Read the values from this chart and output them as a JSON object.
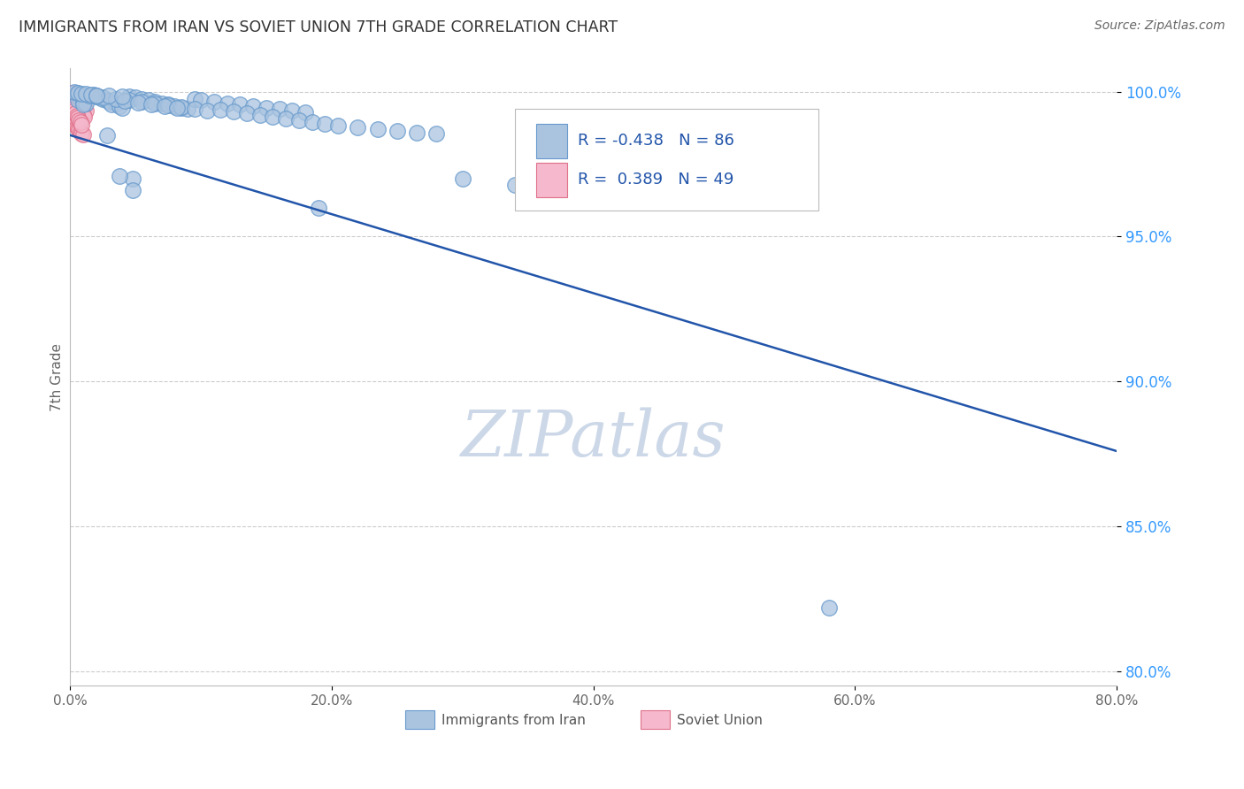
{
  "title": "IMMIGRANTS FROM IRAN VS SOVIET UNION 7TH GRADE CORRELATION CHART",
  "source": "Source: ZipAtlas.com",
  "ylabel": "7th Grade",
  "x_tick_labels": [
    "0.0%",
    "20.0%",
    "40.0%",
    "60.0%",
    "80.0%"
  ],
  "y_tick_labels": [
    "80.0%",
    "85.0%",
    "90.0%",
    "95.0%",
    "100.0%"
  ],
  "xlim": [
    0.0,
    0.8
  ],
  "ylim": [
    0.795,
    1.008
  ],
  "iran_color": "#aac4e0",
  "iran_edge": "#6699cc",
  "soviet_color": "#f5b8cc",
  "soviet_edge": "#e0708a",
  "trendline_color": "#2255aa",
  "grid_color": "#cccccc",
  "title_color": "#333333",
  "axis_color": "#666666",
  "source_color": "#666666",
  "watermark_color": "#ccd8e8",
  "legend_text_color": "#2255aa",
  "iran_x": [
    0.005,
    0.008,
    0.01,
    0.012,
    0.008,
    0.006,
    0.01,
    0.015,
    0.012,
    0.01,
    0.018,
    0.02,
    0.022,
    0.025,
    0.028,
    0.03,
    0.035,
    0.032,
    0.038,
    0.04,
    0.045,
    0.05,
    0.055,
    0.06,
    0.065,
    0.07,
    0.075,
    0.08,
    0.085,
    0.09,
    0.095,
    0.1,
    0.11,
    0.12,
    0.13,
    0.14,
    0.15,
    0.16,
    0.17,
    0.18,
    0.015,
    0.025,
    0.035,
    0.045,
    0.055,
    0.065,
    0.075,
    0.085,
    0.095,
    0.105,
    0.042,
    0.052,
    0.062,
    0.072,
    0.082,
    0.115,
    0.125,
    0.135,
    0.145,
    0.155,
    0.165,
    0.175,
    0.185,
    0.195,
    0.205,
    0.22,
    0.235,
    0.25,
    0.265,
    0.28,
    0.003,
    0.006,
    0.009,
    0.012,
    0.016,
    0.02,
    0.03,
    0.04,
    0.58,
    0.19,
    0.048,
    0.038,
    0.028,
    0.048,
    0.02,
    0.3,
    0.34,
    0.38,
    0.42,
    0.46
  ],
  "iran_y": [
    0.9995,
    0.999,
    0.9985,
    0.998,
    0.9975,
    0.997,
    0.9965,
    0.9985,
    0.996,
    0.9955,
    0.999,
    0.9985,
    0.998,
    0.9975,
    0.997,
    0.9965,
    0.996,
    0.9955,
    0.995,
    0.9945,
    0.9985,
    0.998,
    0.9975,
    0.997,
    0.9965,
    0.996,
    0.9955,
    0.995,
    0.9945,
    0.994,
    0.9975,
    0.997,
    0.9965,
    0.996,
    0.9955,
    0.995,
    0.9945,
    0.994,
    0.9935,
    0.993,
    0.9988,
    0.9982,
    0.9976,
    0.997,
    0.9964,
    0.9958,
    0.9952,
    0.9946,
    0.994,
    0.9934,
    0.9968,
    0.9962,
    0.9956,
    0.995,
    0.9944,
    0.9938,
    0.9932,
    0.9926,
    0.992,
    0.9914,
    0.9908,
    0.9902,
    0.9896,
    0.989,
    0.9884,
    0.9878,
    0.9872,
    0.9866,
    0.986,
    0.9854,
    0.9998,
    0.9996,
    0.9994,
    0.9992,
    0.999,
    0.9988,
    0.9986,
    0.9984,
    0.822,
    0.96,
    0.97,
    0.971,
    0.985,
    0.966,
    0.9988,
    0.97,
    0.968,
    0.9665,
    0.965,
    0.9635
  ],
  "soviet_x": [
    0.002,
    0.003,
    0.004,
    0.005,
    0.006,
    0.007,
    0.008,
    0.009,
    0.01,
    0.011,
    0.003,
    0.004,
    0.005,
    0.006,
    0.007,
    0.008,
    0.009,
    0.01,
    0.011,
    0.012,
    0.002,
    0.003,
    0.004,
    0.005,
    0.006,
    0.007,
    0.008,
    0.009,
    0.01,
    0.011,
    0.001,
    0.002,
    0.003,
    0.004,
    0.005,
    0.006,
    0.007,
    0.008,
    0.009,
    0.01,
    0.001,
    0.002,
    0.003,
    0.004,
    0.005,
    0.006,
    0.007,
    0.008,
    0.009
  ],
  "soviet_y": [
    0.9995,
    0.999,
    0.9985,
    0.998,
    0.9975,
    0.997,
    0.9965,
    0.996,
    0.9955,
    0.995,
    0.9988,
    0.9982,
    0.9976,
    0.997,
    0.9964,
    0.9958,
    0.9952,
    0.9946,
    0.994,
    0.9934,
    0.9975,
    0.9968,
    0.9961,
    0.9954,
    0.9947,
    0.994,
    0.9933,
    0.9926,
    0.9919,
    0.9912,
    0.9905,
    0.9899,
    0.9893,
    0.9887,
    0.9881,
    0.9875,
    0.9869,
    0.9863,
    0.9857,
    0.9851,
    0.995,
    0.9942,
    0.9934,
    0.9926,
    0.9918,
    0.991,
    0.9902,
    0.9894,
    0.9886
  ],
  "trendline_x": [
    0.0,
    0.8
  ],
  "trendline_y": [
    0.985,
    0.876
  ]
}
